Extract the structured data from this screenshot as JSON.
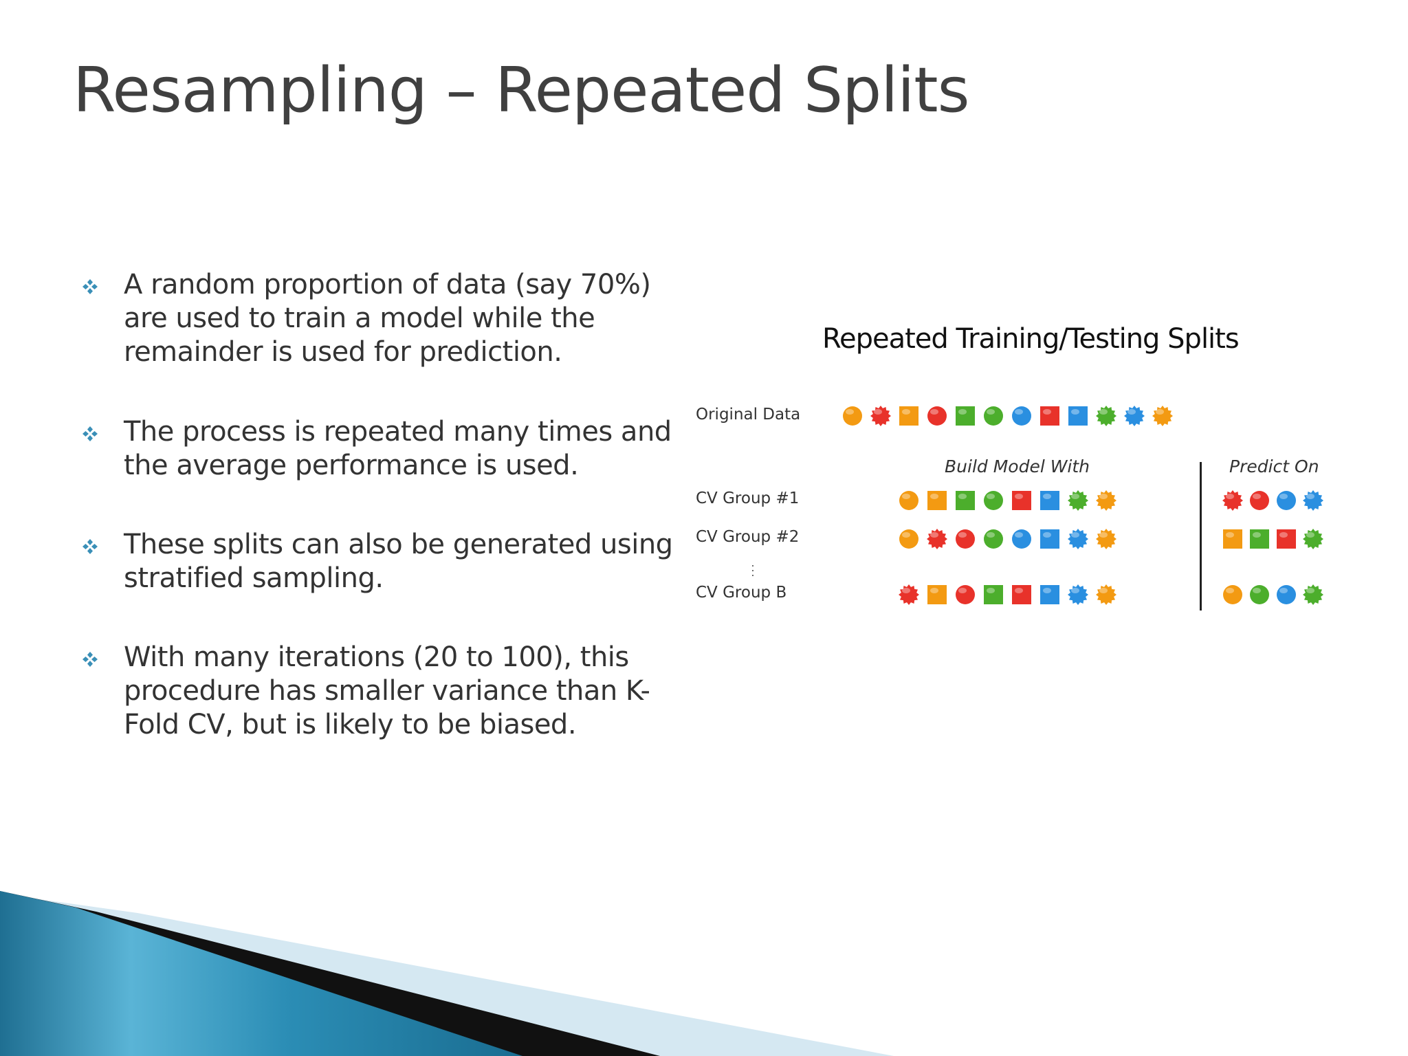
{
  "slide": {
    "title": "Resampling – Repeated Splits",
    "bullet_icon": "diamond-cluster-icon",
    "accent_color": "#3a8fb7",
    "bullets": [
      {
        "text": "A random proportion of data (say 70%) are used to train a model while the remainder is used for prediction."
      },
      {
        "text": "The process is repeated many times and the average performance is used."
      },
      {
        "text": "These splits can also be generated using stratified sampling."
      },
      {
        "text": "With many iterations (20 to 100), this procedure has smaller variance than K-Fold CV, but is likely to be biased."
      }
    ]
  },
  "figure": {
    "title": "Repeated Training/Testing Splits",
    "build_header": "Build Model With",
    "predict_header": "Predict On",
    "colors": {
      "orange": "#f39a12",
      "red": "#e8322a",
      "green": "#4cae2c",
      "blue": "#2a8fe0"
    },
    "rows": [
      {
        "label": "Original Data",
        "build": [
          {
            "shape": "circle",
            "color": "orange"
          },
          {
            "shape": "star",
            "color": "red"
          },
          {
            "shape": "square",
            "color": "orange"
          },
          {
            "shape": "circle",
            "color": "red"
          },
          {
            "shape": "square",
            "color": "green"
          },
          {
            "shape": "circle",
            "color": "green"
          },
          {
            "shape": "circle",
            "color": "blue"
          },
          {
            "shape": "square",
            "color": "red"
          },
          {
            "shape": "square",
            "color": "blue"
          },
          {
            "shape": "star",
            "color": "green"
          },
          {
            "shape": "star",
            "color": "blue"
          },
          {
            "shape": "star",
            "color": "orange"
          }
        ],
        "predict": []
      },
      {
        "label": "CV Group #1",
        "build": [
          {
            "shape": "circle",
            "color": "orange"
          },
          {
            "shape": "square",
            "color": "orange"
          },
          {
            "shape": "square",
            "color": "green"
          },
          {
            "shape": "circle",
            "color": "green"
          },
          {
            "shape": "square",
            "color": "red"
          },
          {
            "shape": "square",
            "color": "blue"
          },
          {
            "shape": "star",
            "color": "green"
          },
          {
            "shape": "star",
            "color": "orange"
          }
        ],
        "predict": [
          {
            "shape": "star",
            "color": "red"
          },
          {
            "shape": "circle",
            "color": "red"
          },
          {
            "shape": "circle",
            "color": "blue"
          },
          {
            "shape": "star",
            "color": "blue"
          }
        ]
      },
      {
        "label": "CV Group #2",
        "build": [
          {
            "shape": "circle",
            "color": "orange"
          },
          {
            "shape": "star",
            "color": "red"
          },
          {
            "shape": "circle",
            "color": "red"
          },
          {
            "shape": "circle",
            "color": "green"
          },
          {
            "shape": "circle",
            "color": "blue"
          },
          {
            "shape": "square",
            "color": "blue"
          },
          {
            "shape": "star",
            "color": "blue"
          },
          {
            "shape": "star",
            "color": "orange"
          }
        ],
        "predict": [
          {
            "shape": "square",
            "color": "orange"
          },
          {
            "shape": "square",
            "color": "green"
          },
          {
            "shape": "square",
            "color": "red"
          },
          {
            "shape": "star",
            "color": "green"
          }
        ]
      },
      {
        "label": "CV Group B",
        "build": [
          {
            "shape": "star",
            "color": "red"
          },
          {
            "shape": "square",
            "color": "orange"
          },
          {
            "shape": "circle",
            "color": "red"
          },
          {
            "shape": "square",
            "color": "green"
          },
          {
            "shape": "square",
            "color": "red"
          },
          {
            "shape": "square",
            "color": "blue"
          },
          {
            "shape": "star",
            "color": "blue"
          },
          {
            "shape": "star",
            "color": "orange"
          }
        ],
        "predict": [
          {
            "shape": "circle",
            "color": "orange"
          },
          {
            "shape": "circle",
            "color": "green"
          },
          {
            "shape": "circle",
            "color": "blue"
          },
          {
            "shape": "star",
            "color": "green"
          }
        ]
      }
    ]
  },
  "decoration": {
    "band_color": "#2d8fb5",
    "band_light": "#d5e8f2",
    "band_dark": "#111111"
  }
}
